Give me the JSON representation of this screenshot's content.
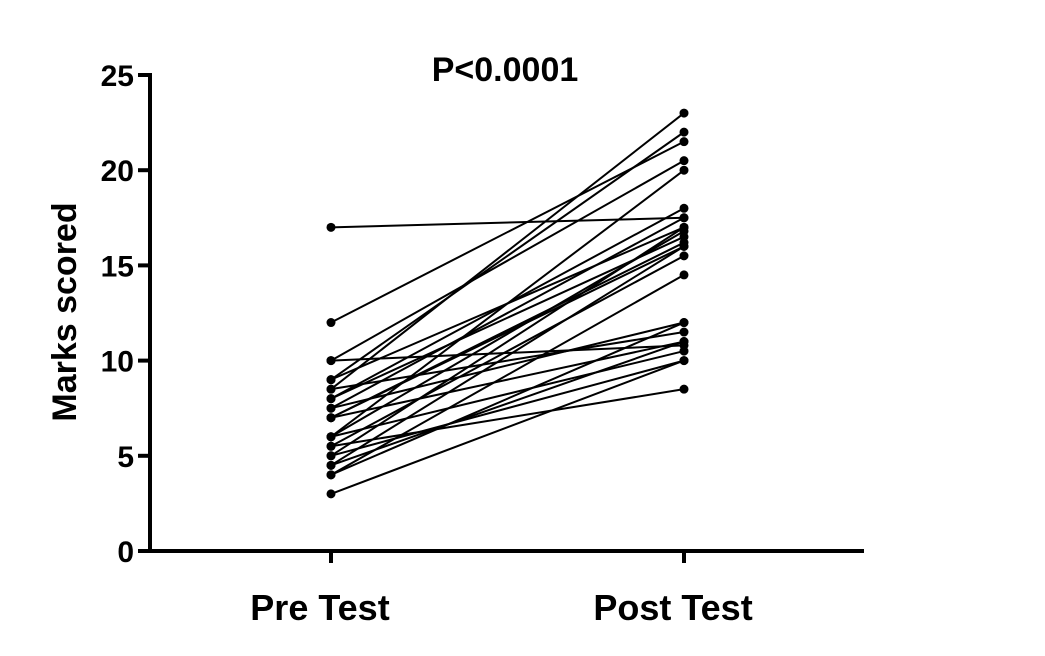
{
  "chart_data": {
    "type": "line",
    "title": "P<0.0001",
    "ylabel": "Marks scored",
    "xlabel": "",
    "categories": [
      "Pre Test",
      "Post Test"
    ],
    "ylim": [
      0,
      25
    ],
    "yticks": [
      0,
      5,
      10,
      15,
      20,
      25
    ],
    "grid": false,
    "legend": "none",
    "line_color": "#000000",
    "pairs": [
      [
        17,
        17.5
      ],
      [
        12,
        21.5
      ],
      [
        10,
        10.8
      ],
      [
        10,
        20.5
      ],
      [
        9,
        22
      ],
      [
        9,
        17
      ],
      [
        8.5,
        23
      ],
      [
        8.5,
        11.5
      ],
      [
        8,
        18
      ],
      [
        8,
        16.5
      ],
      [
        7.5,
        17.5
      ],
      [
        7.5,
        12
      ],
      [
        7,
        16
      ],
      [
        7,
        11
      ],
      [
        7,
        16.2
      ],
      [
        6,
        16.8
      ],
      [
        6,
        20
      ],
      [
        6,
        10.5
      ],
      [
        5.5,
        15.5
      ],
      [
        5.5,
        8.5
      ],
      [
        5,
        17
      ],
      [
        5,
        10
      ],
      [
        4.5,
        16
      ],
      [
        4.5,
        11
      ],
      [
        4,
        14.5
      ],
      [
        4,
        12
      ],
      [
        3,
        10
      ]
    ]
  }
}
